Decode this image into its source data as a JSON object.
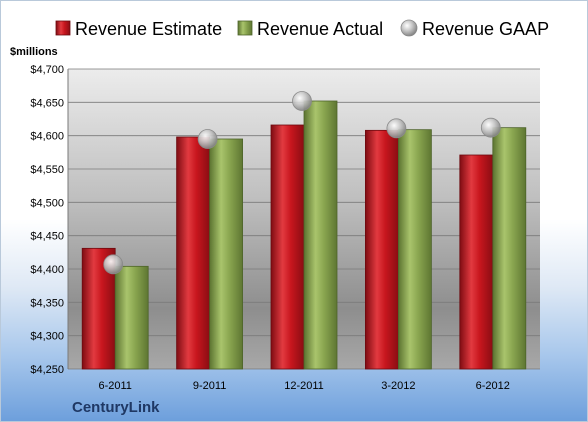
{
  "company": "CenturyLink",
  "chart_data": {
    "type": "bar",
    "ylabel": "$millions",
    "categories": [
      "6-2011",
      "9-2011",
      "12-2011",
      "3-2012",
      "6-2012"
    ],
    "ylim": [
      4250,
      4700
    ],
    "yticks": [
      4250,
      4300,
      4350,
      4400,
      4450,
      4500,
      4550,
      4600,
      4650,
      4700
    ],
    "ytick_labels": [
      "$4,250",
      "$4,300",
      "$4,350",
      "$4,400",
      "$4,450",
      "$4,500",
      "$4,550",
      "$4,600",
      "$4,650",
      "$4,700"
    ],
    "grid": true,
    "legend_position": "top",
    "series": [
      {
        "name": "Revenue Estimate",
        "kind": "bar",
        "color": "#c0171f",
        "values": [
          4431,
          4598,
          4616,
          4608,
          4571
        ]
      },
      {
        "name": "Revenue Actual",
        "kind": "bar",
        "color": "#86a24a",
        "values": [
          4404,
          4595,
          4652,
          4609,
          4612
        ]
      },
      {
        "name": "Revenue GAAP",
        "kind": "marker",
        "color": "#b4b4b4",
        "values": [
          4407,
          4595,
          4652,
          4611,
          4612
        ]
      }
    ]
  }
}
